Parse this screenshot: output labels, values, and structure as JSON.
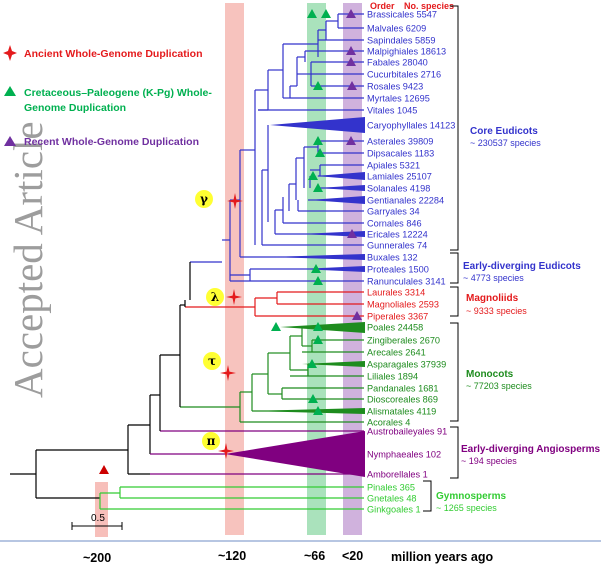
{
  "watermark": "Accepted Article",
  "legend": {
    "ancient": {
      "line1": "Ancient Whole-Genome Duplication",
      "icon": "red-star-icon",
      "color": "#e41a1c"
    },
    "kpg": {
      "line1": "Cretaceous–Paleogene (K-Pg)  Whole-",
      "line2": "Genome Duplication",
      "icon": "green-triangle-icon",
      "color": "#00b050"
    },
    "recent": {
      "line1": "Recent Whole-Genome Duplication",
      "icon": "purple-triangle-icon",
      "color": "#7030a0"
    }
  },
  "header": {
    "order": "Order",
    "species": "No. species"
  },
  "taxa": [
    {
      "label": "Brassicales 5547",
      "color": "#3333cc"
    },
    {
      "label": "Malvales 6209",
      "color": "#3333cc"
    },
    {
      "label": "Sapindales 5859",
      "color": "#3333cc"
    },
    {
      "label": "Malpighiales 18613",
      "color": "#3333cc"
    },
    {
      "label": "Fabales 28040",
      "color": "#3333cc"
    },
    {
      "label": "Cucurbitales 2716",
      "color": "#3333cc"
    },
    {
      "label": "Rosales 9423",
      "color": "#3333cc"
    },
    {
      "label": "Myrtales 12695",
      "color": "#3333cc"
    },
    {
      "label": "Vitales 1045",
      "color": "#3333cc"
    },
    {
      "label": "Caryophyllales 14123",
      "color": "#3333cc"
    },
    {
      "label": "Asterales 39809",
      "color": "#3333cc"
    },
    {
      "label": "Dipsacales 1183",
      "color": "#3333cc"
    },
    {
      "label": "Apiales 5321",
      "color": "#3333cc"
    },
    {
      "label": "Lamiales 25107",
      "color": "#3333cc"
    },
    {
      "label": "Solanales 4198",
      "color": "#3333cc"
    },
    {
      "label": "Gentianales 22284",
      "color": "#3333cc"
    },
    {
      "label": "Garryales 34",
      "color": "#3333cc"
    },
    {
      "label": "Cornales 846",
      "color": "#3333cc"
    },
    {
      "label": "Ericales 12224",
      "color": "#3333cc"
    },
    {
      "label": "Gunnerales 74",
      "color": "#3333cc"
    },
    {
      "label": "Buxales 132",
      "color": "#3333cc"
    },
    {
      "label": "Proteales 1500",
      "color": "#3333cc"
    },
    {
      "label": "Ranunculales 3141",
      "color": "#3333cc"
    },
    {
      "label": "Laurales 3314",
      "color": "#e41a1c"
    },
    {
      "label": "Magnoliales 2593",
      "color": "#e41a1c"
    },
    {
      "label": "Piperales 3367",
      "color": "#e41a1c"
    },
    {
      "label": "Poales 24458",
      "color": "#1e8c1e"
    },
    {
      "label": "Zingiberales 2670",
      "color": "#1e8c1e"
    },
    {
      "label": "Arecales 2641",
      "color": "#1e8c1e"
    },
    {
      "label": "Asparagales 37939",
      "color": "#1e8c1e"
    },
    {
      "label": "Liliales 1894",
      "color": "#1e8c1e"
    },
    {
      "label": "Pandanales 1681",
      "color": "#1e8c1e"
    },
    {
      "label": "Dioscoreales 869",
      "color": "#1e8c1e"
    },
    {
      "label": "Alismatales 4119",
      "color": "#1e8c1e"
    },
    {
      "label": "Acorales 4",
      "color": "#1e8c1e"
    },
    {
      "label": "Austrobaileyales 91",
      "color": "#800080"
    },
    {
      "label": "Nymphaeales 102",
      "color": "#800080"
    },
    {
      "label": "Amborellales 1",
      "color": "#800080"
    },
    {
      "label": "Pinales 365",
      "color": "#33cc33"
    },
    {
      "label": "Gnetales 48",
      "color": "#33cc33"
    },
    {
      "label": "Ginkgoales 1",
      "color": "#33cc33"
    }
  ],
  "clades": {
    "core_eudicots": {
      "name": "Core Eudicots",
      "count": "~ 230537 species",
      "color": "#3333cc"
    },
    "early_eudicots": {
      "name1": "Early-diverging Eudicots",
      "name2": "~ 4773 species",
      "color": "#3333cc"
    },
    "magnoliids": {
      "name": "Magnoliids",
      "count": "~ 9333 species",
      "color": "#e41a1c"
    },
    "monocots": {
      "name": "Monocots",
      "count": "~ 77203  species",
      "color": "#1e8c1e"
    },
    "early_angio": {
      "name": "Early-diverging Angiosperms",
      "count": "~ 194 species",
      "color": "#800080"
    },
    "gymnosperms": {
      "name": "Gymnosperms",
      "count": "~ 1265  species",
      "color": "#33cc33"
    }
  },
  "wgd_events": {
    "gamma": "γ",
    "lambda": "λ",
    "tau": "τ",
    "pi": "π"
  },
  "scale_bar": "0.5",
  "time_axis": {
    "t200": "~200",
    "t120": "~120",
    "t66": "~66",
    "t20": "<20",
    "unit": "million years ago"
  }
}
